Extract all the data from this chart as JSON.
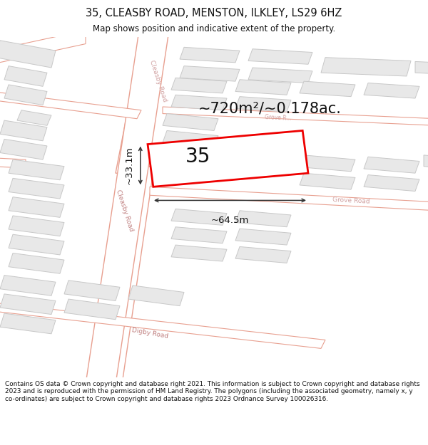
{
  "title_line1": "35, CLEASBY ROAD, MENSTON, ILKLEY, LS29 6HZ",
  "title_line2": "Map shows position and indicative extent of the property.",
  "bg_color": "#ffffff",
  "map_bg": "#ffffff",
  "road_line_color": "#e8a090",
  "building_fill": "#e8e8e8",
  "building_outline": "#c8c8c8",
  "highlight_fill": "#ffffff",
  "highlight_outline": "#ff0000",
  "highlight_lw": 2.0,
  "area_text": "~720m²/~0.178ac.",
  "number_text": "35",
  "dim_width": "~64.5m",
  "dim_height": "~33.1m",
  "footer_text": "Contains OS data © Crown copyright and database right 2021. This information is subject to Crown copyright and database rights 2023 and is reproduced with the permission of HM Land Registry. The polygons (including the associated geometry, namely x, y co-ordinates) are subject to Crown copyright and database rights 2023 Ordnance Survey 100026316.",
  "road_label_color": "#c08080",
  "road_label_color2": "#d0a0a0"
}
